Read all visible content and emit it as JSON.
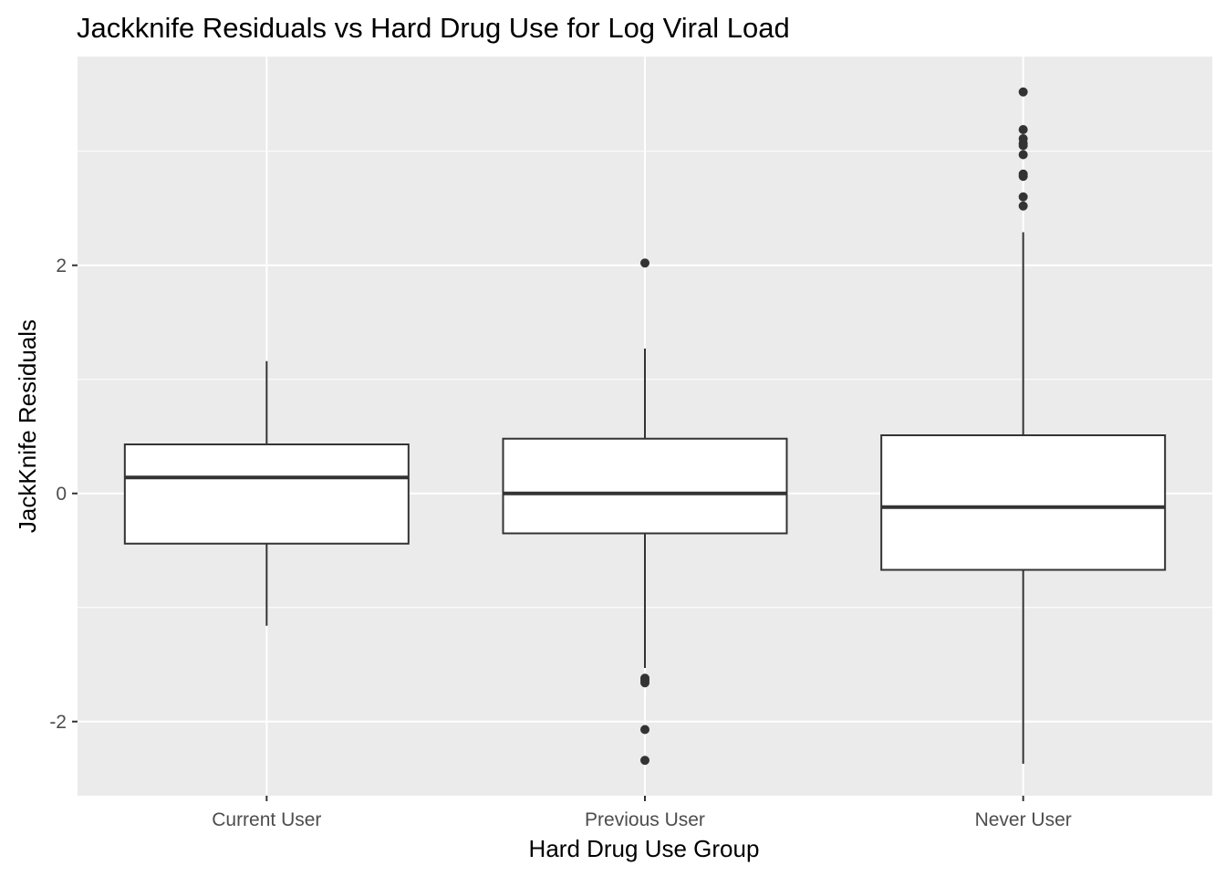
{
  "chart_data": {
    "type": "boxplot",
    "title": "Jackknife Residuals vs Hard Drug Use for Log Viral Load",
    "xlabel": "Hard Drug Use Group",
    "ylabel": "JackKnife Residuals",
    "categories": [
      "Current User",
      "Previous User",
      "Never User"
    ],
    "y_ticks": [
      -2,
      0,
      2
    ],
    "ylim": [
      -2.65,
      3.83
    ],
    "grid": true,
    "boxes": [
      {
        "category": "Current User",
        "whisker_low": -1.16,
        "q1": -0.44,
        "median": 0.14,
        "q3": 0.43,
        "whisker_high": 1.16,
        "outliers": []
      },
      {
        "category": "Previous User",
        "whisker_low": -1.53,
        "q1": -0.35,
        "median": 0.0,
        "q3": 0.48,
        "whisker_high": 1.27,
        "outliers": [
          2.02,
          -1.62,
          -1.64,
          -1.66,
          -2.07,
          -2.34
        ]
      },
      {
        "category": "Never User",
        "whisker_low": -2.37,
        "q1": -0.67,
        "median": -0.12,
        "q3": 0.51,
        "whisker_high": 2.29,
        "outliers": [
          3.52,
          3.19,
          3.11,
          3.07,
          3.05,
          2.97,
          2.8,
          2.78,
          2.6,
          2.52
        ]
      }
    ],
    "colors": {
      "panel_bg": "#ebebeb",
      "grid": "#ffffff",
      "box_fill": "#ffffff",
      "box_stroke": "#333333",
      "tick_text": "#4d4d4d"
    }
  }
}
